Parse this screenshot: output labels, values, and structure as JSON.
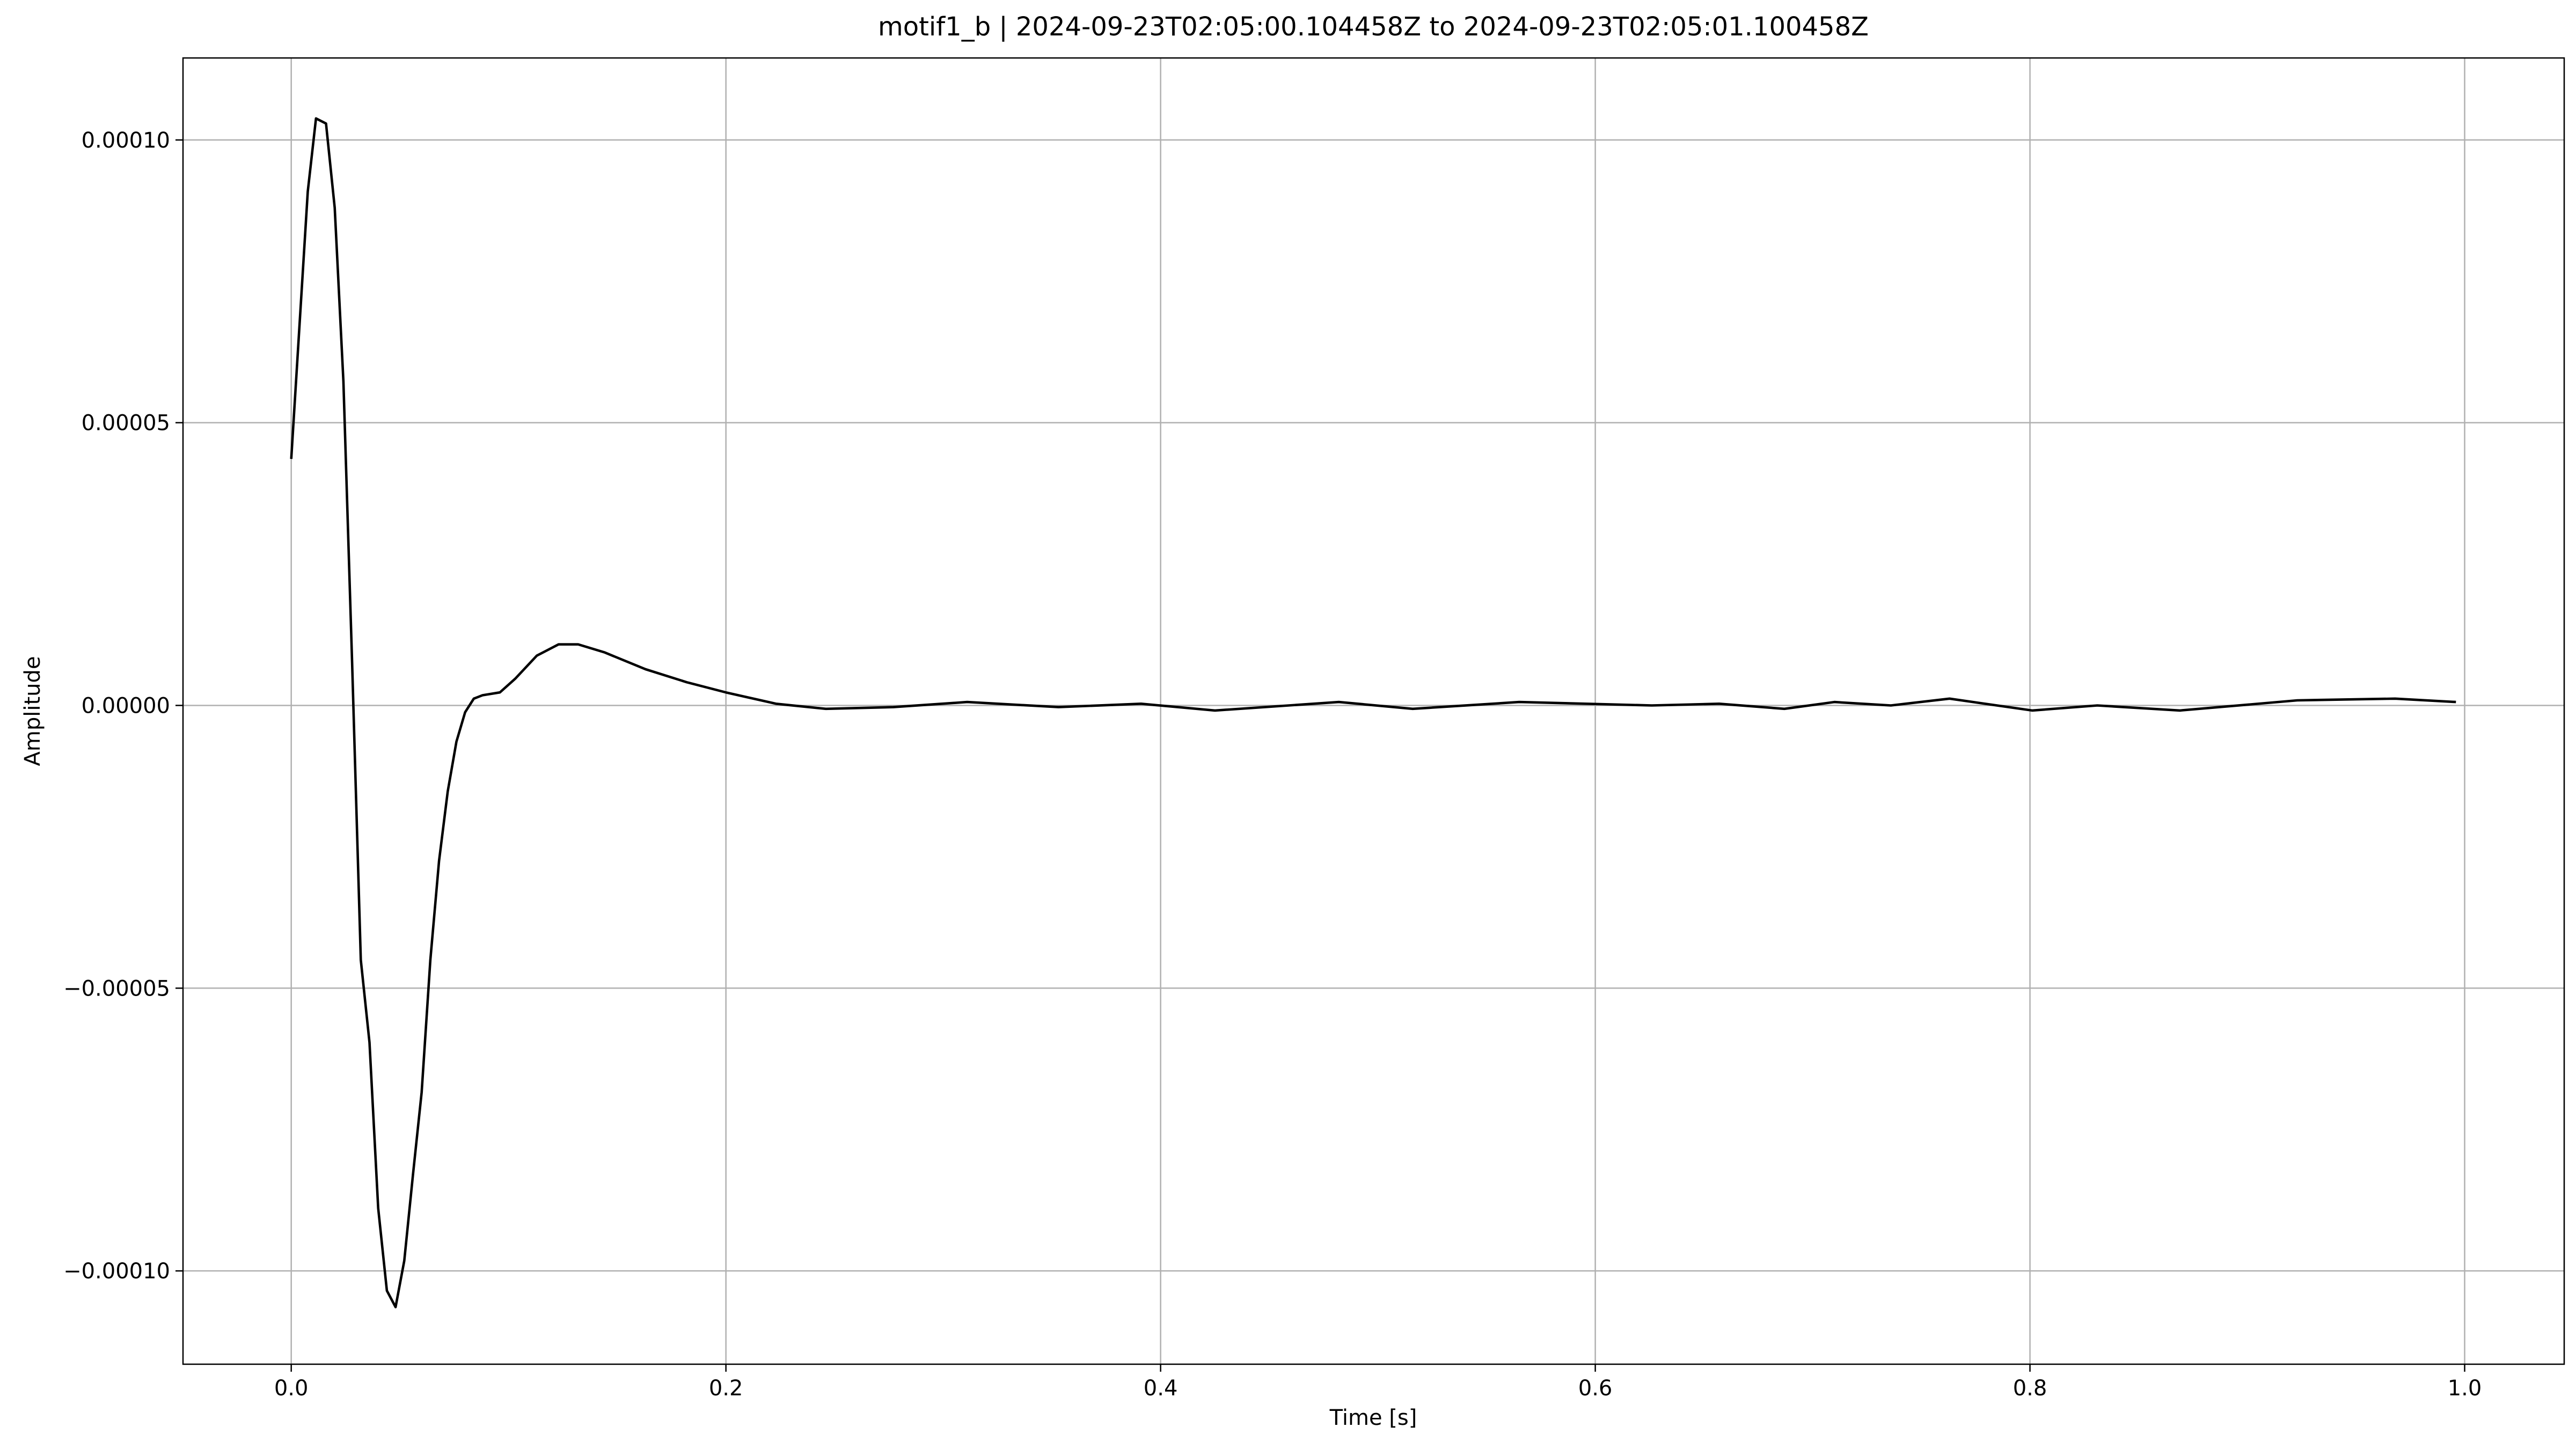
{
  "chart_data": {
    "type": "line",
    "title": "motif1_b | 2024-09-23T02:05:00.104458Z to 2024-09-23T02:05:01.100458Z",
    "xlabel": "Time [s]",
    "ylabel": "Amplitude",
    "x": [
      0,
      0.0076,
      0.0114,
      0.016,
      0.02,
      0.024,
      0.028,
      0.032,
      0.036,
      0.04,
      0.044,
      0.048,
      0.052,
      0.056,
      0.06,
      0.064,
      0.068,
      0.072,
      0.076,
      0.08,
      0.084,
      0.088,
      0.096,
      0.103,
      0.113,
      0.123,
      0.132,
      0.144,
      0.163,
      0.182,
      0.2,
      0.223,
      0.246,
      0.277,
      0.311,
      0.353,
      0.391,
      0.425,
      0.482,
      0.516,
      0.565,
      0.626,
      0.657,
      0.687,
      0.71,
      0.736,
      0.763,
      0.801,
      0.831,
      0.869,
      0.923,
      0.968,
      0.996
    ],
    "series": [
      {
        "name": "motif1_b",
        "color": "#000000",
        "values": [
          4.36e-05,
          9.09e-05,
          0.0001038,
          0.0001029,
          8.8e-05,
          5.73e-05,
          7.6e-06,
          -4.5e-05,
          -5.96e-05,
          -8.89e-05,
          -0.0001035,
          -0.0001064,
          -9.82e-05,
          -8.3e-05,
          -6.84e-05,
          -4.5e-05,
          -2.75e-05,
          -1.52e-05,
          -6.4e-06,
          -1.2e-06,
          1.2e-06,
          1.8e-06,
          2.3e-06,
          4.7e-06,
          8.8e-06,
          1.08e-05,
          1.08e-05,
          9.4e-06,
          6.4e-06,
          4.1e-06,
          2.3e-06,
          3e-07,
          -6e-07,
          -3e-07,
          6e-07,
          -3e-07,
          3e-07,
          -9e-07,
          6e-07,
          -6e-07,
          6e-07,
          0,
          3e-07,
          -6e-07,
          6e-07,
          0,
          1.2e-06,
          -9e-07,
          0,
          -9e-07,
          9e-07,
          1.2e-06,
          6e-07
        ]
      }
    ],
    "xlim": [
      -0.0498,
      1.0458
    ],
    "ylim": [
      -0.0001165,
      0.0001145
    ],
    "xticks": [
      {
        "value": 0,
        "label": "0.0"
      },
      0.2,
      0.4,
      0.6,
      0.8,
      {
        "value": 1,
        "label": "1.0"
      }
    ],
    "yticks": [
      {
        "value": -0.0001,
        "label": "−0.00010"
      },
      {
        "value": -5e-05,
        "label": "−0.00005"
      },
      {
        "value": 0,
        "label": "0.00000"
      },
      {
        "value": 5e-05,
        "label": "0.00005"
      },
      {
        "value": 0.0001,
        "label": "0.00010"
      }
    ],
    "grid": true
  }
}
